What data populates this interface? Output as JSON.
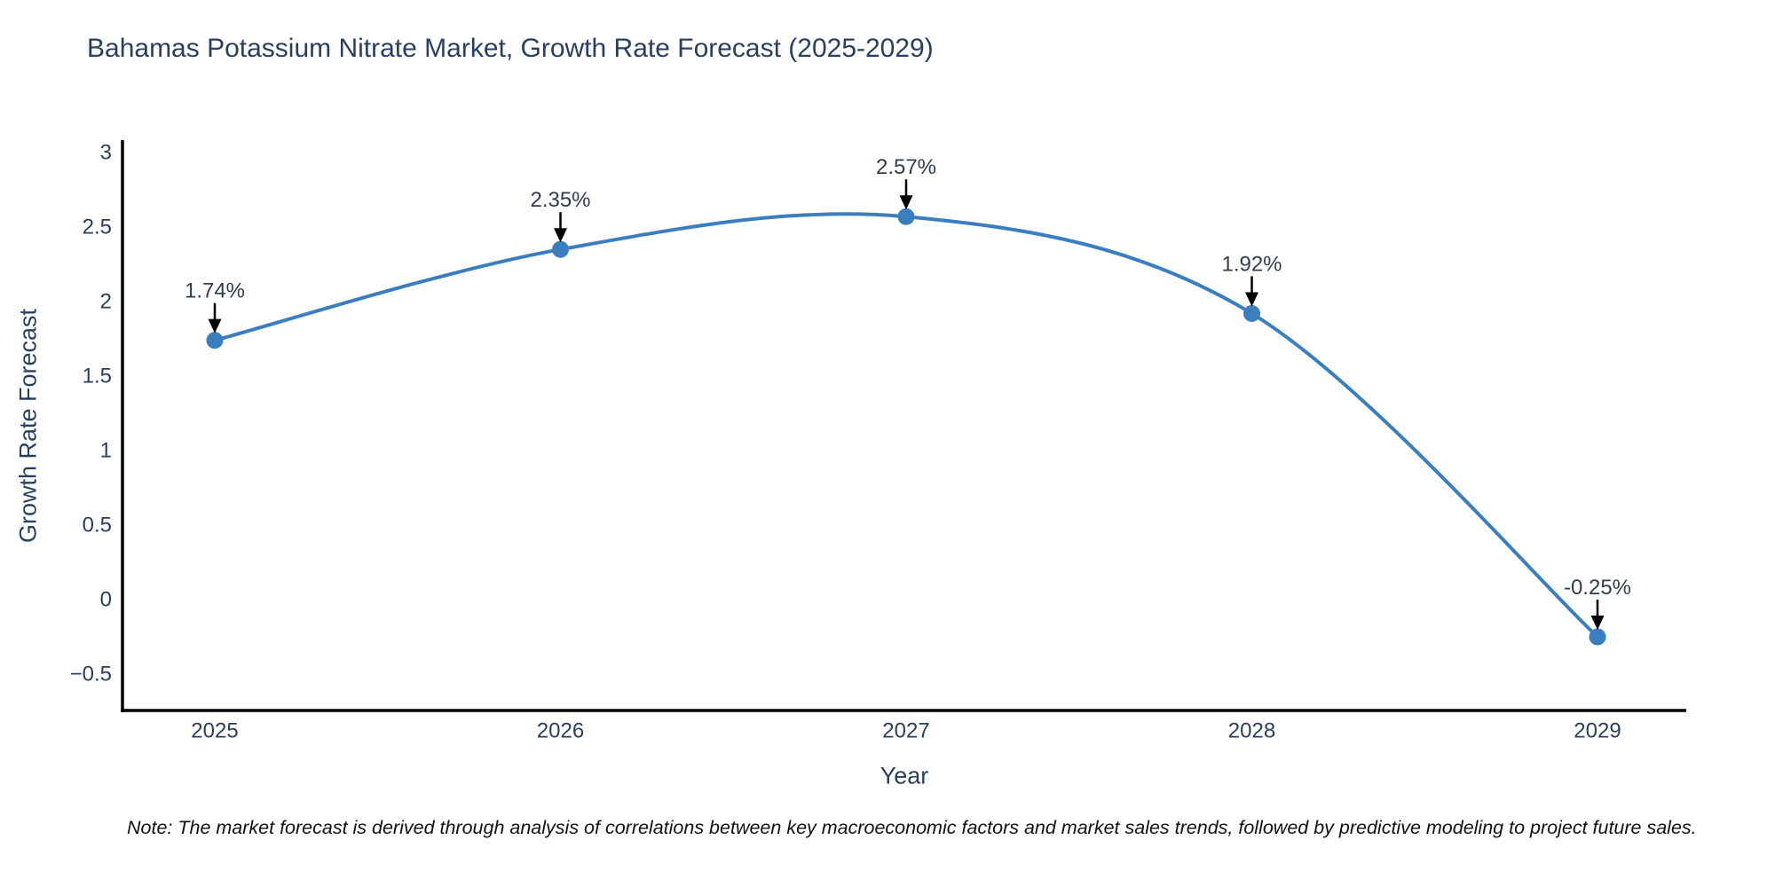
{
  "title": "Bahamas Potassium Nitrate Market, Growth Rate Forecast (2025-2029)",
  "chart_data": {
    "type": "line",
    "curve": "spline",
    "x": [
      2025,
      2026,
      2027,
      2028,
      2029
    ],
    "series": [
      {
        "name": "Growth Rate Forecast",
        "values": [
          1.74,
          2.35,
          2.57,
          1.92,
          -0.25
        ]
      }
    ],
    "point_labels": [
      "1.74%",
      "2.35%",
      "2.57%",
      "1.92%",
      "-0.25%"
    ],
    "xlabel": "Year",
    "ylabel": "Growth Rate Forecast",
    "xtick_labels": [
      "2025",
      "2026",
      "2027",
      "2028",
      "2029"
    ],
    "yticks": [
      3,
      2.5,
      2,
      1.5,
      1,
      0.5,
      0,
      -0.5
    ],
    "ytick_labels": [
      "3",
      "2.5",
      "2",
      "1.5",
      "1",
      "0.5",
      "0",
      "−0.5"
    ],
    "ylim": [
      -0.75,
      3.08
    ],
    "grid": false,
    "legend": "none",
    "line_color": "#3a7ebf",
    "marker_color": "#3a7ebf",
    "axis_color": "#000000",
    "text_color": "#2a3f5f",
    "annotation_arrow_color": "#000000"
  },
  "note": "Note: The market forecast is derived through analysis of correlations between key macroeconomic factors and market sales trends, followed by predictive modeling to project future sales."
}
